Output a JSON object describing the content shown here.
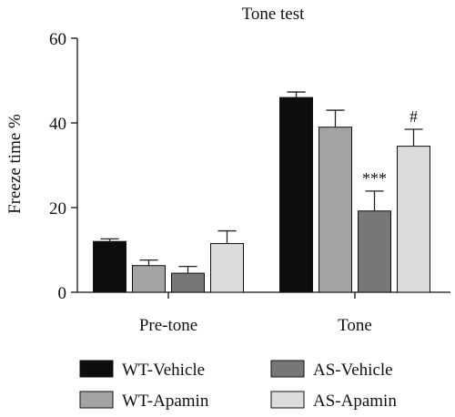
{
  "chart_data": {
    "type": "bar",
    "title": "Tone test",
    "ylabel": "Freeze time %",
    "xlabel": "",
    "ylim": [
      0,
      60
    ],
    "yticks": [
      0,
      20,
      40,
      60
    ],
    "categories": [
      "Pre-tone",
      "Tone"
    ],
    "series": [
      {
        "name": "WT-Vehicle",
        "color": "#0d0d0d",
        "values": [
          12.0,
          46.0
        ],
        "errors": [
          0.6,
          1.3
        ]
      },
      {
        "name": "WT-Apamin",
        "color": "#a3a3a3",
        "values": [
          6.3,
          39.0
        ],
        "errors": [
          1.3,
          4.0
        ]
      },
      {
        "name": "AS-Vehicle",
        "color": "#777777",
        "values": [
          4.5,
          19.2
        ],
        "errors": [
          1.6,
          4.7
        ]
      },
      {
        "name": "AS-Apamin",
        "color": "#dcdcdc",
        "values": [
          11.5,
          34.5
        ],
        "errors": [
          3.0,
          4.0
        ]
      }
    ],
    "annotations": [
      {
        "series": 2,
        "category": 1,
        "text": "***"
      },
      {
        "series": 3,
        "category": 1,
        "text": "#"
      }
    ],
    "legend": "bottom"
  }
}
